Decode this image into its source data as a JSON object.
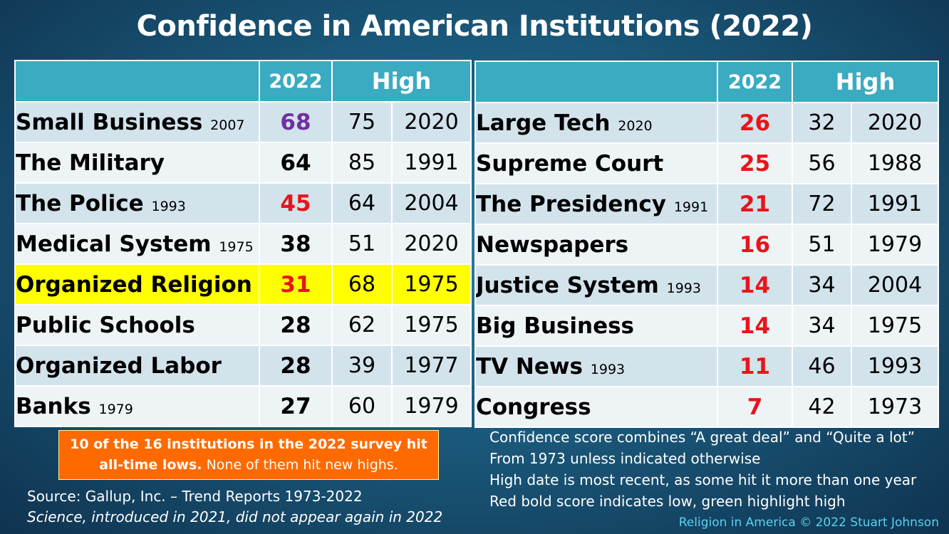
{
  "title": "Confidence in American Institutions (2022)",
  "colors": {
    "low_score": "#e8151a",
    "high_score": "#7030a0",
    "normal_score": "#000000",
    "header": "#3aabc0",
    "highlight_row": "#ffff00"
  },
  "left_table": {
    "header": {
      "year": "2022",
      "high": "High"
    },
    "rows": [
      {
        "name": "Small Business",
        "since": "2007",
        "score": "68",
        "score_style": "high",
        "high": "75",
        "high_year": "2020"
      },
      {
        "name": "The Military",
        "since": "",
        "score": "64",
        "score_style": "normal",
        "high": "85",
        "high_year": "1991"
      },
      {
        "name": "The Police",
        "since": "1993",
        "score": "45",
        "score_style": "low",
        "high": "64",
        "high_year": "2004"
      },
      {
        "name": "Medical System",
        "since": "1975",
        "score": "38",
        "score_style": "normal",
        "high": "51",
        "high_year": "2020"
      },
      {
        "name": "Organized Religion",
        "since": "",
        "score": "31",
        "score_style": "low",
        "high": "68",
        "high_year": "1975",
        "highlight": true
      },
      {
        "name": "Public Schools",
        "since": "",
        "score": "28",
        "score_style": "normal",
        "high": "62",
        "high_year": "1975"
      },
      {
        "name": "Organized Labor",
        "since": "",
        "score": "28",
        "score_style": "normal",
        "high": "39",
        "high_year": "1977"
      },
      {
        "name": "Banks",
        "since": "1979",
        "score": "27",
        "score_style": "normal",
        "high": "60",
        "high_year": "1979"
      }
    ]
  },
  "right_table": {
    "header": {
      "year": "2022",
      "high": "High"
    },
    "rows": [
      {
        "name": "Large Tech",
        "since": "2020",
        "score": "26",
        "score_style": "low",
        "high": "32",
        "high_year": "2020"
      },
      {
        "name": "Supreme Court",
        "since": "",
        "score": "25",
        "score_style": "low",
        "high": "56",
        "high_year": "1988"
      },
      {
        "name": "The Presidency",
        "since": "1991",
        "score": "21",
        "score_style": "low",
        "high": "72",
        "high_year": "1991"
      },
      {
        "name": "Newspapers",
        "since": "",
        "score": "16",
        "score_style": "low",
        "high": "51",
        "high_year": "1979"
      },
      {
        "name": "Justice System",
        "since": "1993",
        "score": "14",
        "score_style": "low",
        "high": "34",
        "high_year": "2004"
      },
      {
        "name": "Big Business",
        "since": "",
        "score": "14",
        "score_style": "low",
        "high": "34",
        "high_year": "1975"
      },
      {
        "name": "TV News",
        "since": "1993",
        "score": "11",
        "score_style": "low",
        "high": "46",
        "high_year": "1993"
      },
      {
        "name": "Congress",
        "since": "",
        "score": "7",
        "score_style": "low",
        "high": "42",
        "high_year": "1973"
      }
    ]
  },
  "callout": {
    "bold": "10 of the 16 institutions in the 2022 survey hit all-time lows.",
    "normal": "None of them hit new highs."
  },
  "source": {
    "line1": "Source: Gallup, Inc. – Trend Reports 1973-2022",
    "line2": "Science, introduced in 2021, did not appear again in 2022"
  },
  "notes": [
    "Confidence score combines “A great deal” and “Quite a lot”",
    "From 1973 unless indicated otherwise",
    "High date is most recent, as some hit it more than one year",
    "Red bold score indicates low, green highlight high"
  ],
  "credit": "Religion in America © 2022 Stuart Johnson"
}
